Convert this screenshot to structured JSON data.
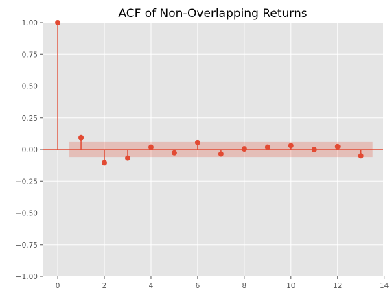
{
  "chart_data": {
    "type": "stem",
    "title": "ACF of Non-Overlapping Returns",
    "xlabel": "",
    "ylabel": "",
    "xlim": [
      -0.65,
      13.95
    ],
    "ylim": [
      -1.0,
      1.0
    ],
    "xticks": [
      0,
      2,
      4,
      6,
      8,
      10,
      12,
      14
    ],
    "yticks": [
      -1.0,
      -0.75,
      -0.5,
      -0.25,
      0.0,
      0.25,
      0.5,
      0.75,
      1.0
    ],
    "ytick_labels": [
      "−1.00",
      "−0.75",
      "−0.50",
      "−0.25",
      "0.00",
      "0.25",
      "0.50",
      "0.75",
      "1.00"
    ],
    "xtick_labels": [
      "0",
      "2",
      "4",
      "6",
      "8",
      "10",
      "12",
      "14"
    ],
    "lags": [
      0,
      1,
      2,
      3,
      4,
      5,
      6,
      7,
      8,
      9,
      10,
      11,
      12,
      13
    ],
    "values": [
      1.0,
      0.093,
      -0.105,
      -0.068,
      0.018,
      -0.026,
      0.055,
      -0.035,
      0.005,
      0.018,
      0.03,
      -0.001,
      0.022,
      -0.05
    ],
    "confidence_band": {
      "x_start": 0.5,
      "x_end": 13.5,
      "lower": -0.06,
      "upper": 0.06
    },
    "grid": true,
    "colors": {
      "background": "#e5e5e5",
      "grid": "#ffffff",
      "stem": "#e24a33",
      "band": "#e24a33"
    }
  }
}
